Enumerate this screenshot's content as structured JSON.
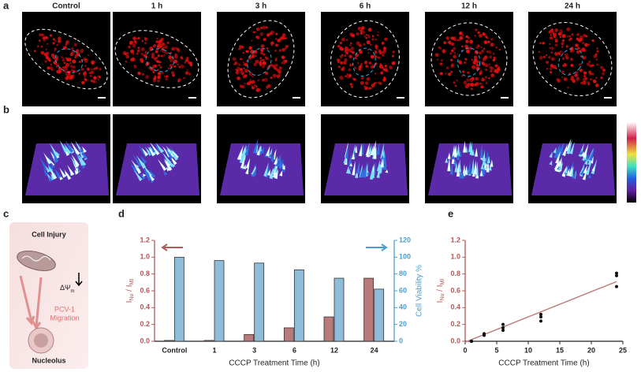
{
  "panel_labels": [
    "a",
    "b",
    "c",
    "d",
    "e"
  ],
  "images": {
    "titles": [
      "Control",
      "1 h",
      "3 h",
      "6 h",
      "12 h",
      "24 h"
    ]
  },
  "diagram": {
    "top": "Cell Injury",
    "potential": "ΔΨ",
    "potential_sub": "m",
    "migration": [
      "PCV-1",
      "Migration"
    ],
    "bottom": "Nucleolus"
  },
  "chart_data": [
    {
      "type": "bar",
      "categories": [
        "Control",
        "1",
        "3",
        "6",
        "12",
        "24"
      ],
      "series": [
        {
          "color": "#b87a7a",
          "values": [
            0.01,
            0.01,
            0.08,
            0.16,
            0.29,
            0.75
          ]
        },
        {
          "color": "#8fbcd8",
          "values": [
            100,
            96,
            93,
            85,
            75,
            62
          ],
          "axis": "y2"
        }
      ],
      "xlabel": "CCCP Treatment Time (h)",
      "ylabel": [
        "I",
        "Nu",
        " / I",
        "MI"
      ],
      "y2label": "Cell Viability %",
      "ylim": [
        0,
        1.2
      ],
      "yticks": [
        {
          "value": 0,
          "label": "0.0"
        },
        {
          "value": 0.2,
          "label": "0.2"
        },
        {
          "value": 0.4,
          "label": "0.4"
        },
        {
          "value": 0.6,
          "label": "0.6"
        },
        {
          "value": 0.8,
          "label": "0.8"
        },
        {
          "value": 1,
          "label": "1.0"
        },
        {
          "value": 1.2,
          "label": "1.2"
        }
      ],
      "y2lim": [
        0,
        120
      ],
      "y2ticks": [
        0,
        20,
        40,
        60,
        80,
        100,
        120
      ],
      "ycolor": "#b05a5a",
      "y2color": "#4aa0cf"
    },
    {
      "type": "scatter",
      "x": [
        1,
        1,
        1,
        3,
        3,
        3,
        6,
        6,
        6,
        12,
        12,
        12,
        24,
        24,
        24
      ],
      "y": [
        0,
        0,
        0,
        0.07,
        0.08,
        0.09,
        0.13,
        0.16,
        0.2,
        0.24,
        0.29,
        0.32,
        0.65,
        0.78,
        0.81
      ],
      "fit": {
        "x": [
          0,
          24
        ],
        "y": [
          -0.01,
          0.71
        ],
        "color": "#c08080"
      },
      "color": "#111111",
      "xlabel": "CCCP Treatment Time (h)",
      "ylabel": [
        "I",
        "Nu",
        " / I",
        "MI"
      ],
      "xlim": [
        0,
        25
      ],
      "xticks": [
        0,
        5,
        10,
        15,
        20,
        25
      ],
      "ylim": [
        0,
        1.2
      ],
      "yticks": [
        {
          "value": 0,
          "label": "0.0"
        },
        {
          "value": 0.2,
          "label": "0.2"
        },
        {
          "value": 0.4,
          "label": "0.4"
        },
        {
          "value": 0.6,
          "label": "0.6"
        },
        {
          "value": 0.8,
          "label": "0.8"
        },
        {
          "value": 1,
          "label": "1.0"
        },
        {
          "value": 1.2,
          "label": "1.2"
        }
      ],
      "ycolor": "#b05a5a"
    }
  ]
}
